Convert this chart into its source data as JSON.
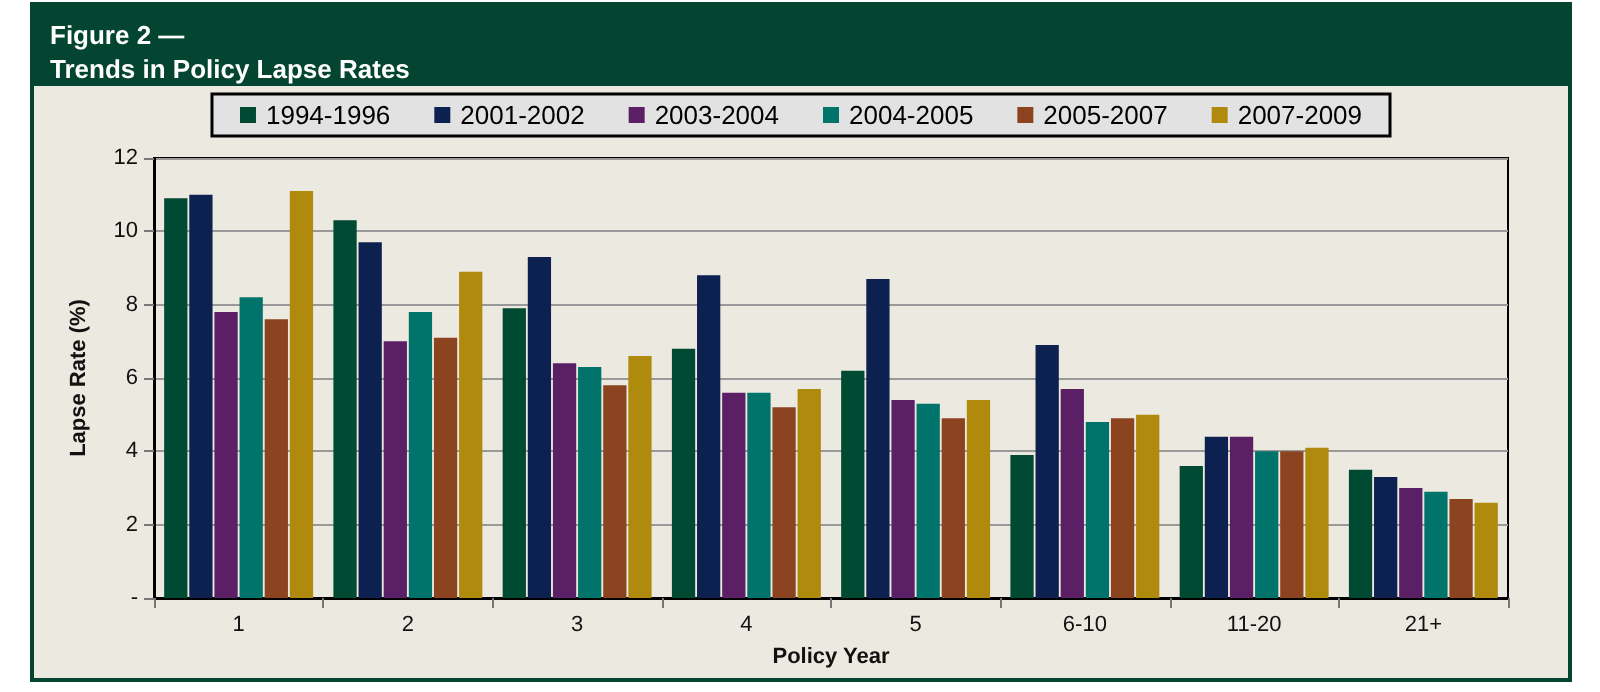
{
  "chart_data": {
    "type": "bar",
    "title": "Figure 2 —",
    "subtitle": "Trends in Policy Lapse Rates",
    "xlabel": "Policy Year",
    "ylabel": "Lapse Rate (%)",
    "categories": [
      "1",
      "2",
      "3",
      "4",
      "5",
      "6-10",
      "11-20",
      "21+"
    ],
    "series": [
      {
        "name": "1994-1996",
        "color": "#004a33",
        "values": [
          10.9,
          10.3,
          7.9,
          6.8,
          6.2,
          3.9,
          3.6,
          3.5
        ]
      },
      {
        "name": "2001-2002",
        "color": "#0d2150",
        "values": [
          11.0,
          9.7,
          9.3,
          8.8,
          8.7,
          6.9,
          4.4,
          3.3
        ]
      },
      {
        "name": "2003-2004",
        "color": "#5b1f66",
        "values": [
          7.8,
          7.0,
          6.4,
          5.6,
          5.4,
          5.7,
          4.4,
          3.0
        ]
      },
      {
        "name": "2004-2005",
        "color": "#00736b",
        "values": [
          8.2,
          7.8,
          6.3,
          5.6,
          5.3,
          4.8,
          4.0,
          2.9
        ]
      },
      {
        "name": "2005-2007",
        "color": "#8c4420",
        "values": [
          7.6,
          7.1,
          5.8,
          5.2,
          4.9,
          4.9,
          4.0,
          2.7
        ]
      },
      {
        "name": "2007-2009",
        "color": "#b08a0c",
        "values": [
          11.1,
          8.9,
          6.6,
          5.7,
          5.4,
          5.0,
          4.1,
          2.6
        ]
      }
    ],
    "ylim": [
      0,
      12
    ],
    "yticks": [
      {
        "value": 0,
        "label": "-"
      },
      2,
      4,
      6,
      8,
      10,
      12
    ],
    "grid": "y",
    "legend": "top"
  }
}
